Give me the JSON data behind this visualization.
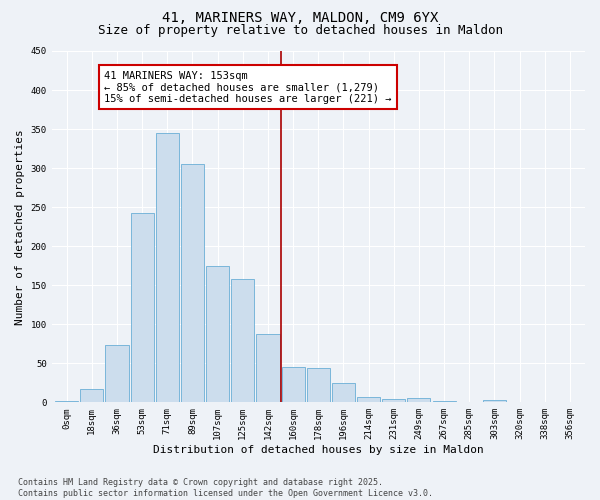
{
  "title": "41, MARINERS WAY, MALDON, CM9 6YX",
  "subtitle": "Size of property relative to detached houses in Maldon",
  "xlabel": "Distribution of detached houses by size in Maldon",
  "ylabel": "Number of detached properties",
  "footnote": "Contains HM Land Registry data © Crown copyright and database right 2025.\nContains public sector information licensed under the Open Government Licence v3.0.",
  "bin_labels": [
    "0sqm",
    "18sqm",
    "36sqm",
    "53sqm",
    "71sqm",
    "89sqm",
    "107sqm",
    "125sqm",
    "142sqm",
    "160sqm",
    "178sqm",
    "196sqm",
    "214sqm",
    "231sqm",
    "249sqm",
    "267sqm",
    "285sqm",
    "303sqm",
    "320sqm",
    "338sqm",
    "356sqm"
  ],
  "bar_values": [
    2,
    17,
    73,
    243,
    345,
    305,
    175,
    158,
    88,
    45,
    44,
    25,
    7,
    4,
    5,
    2,
    0,
    3,
    0,
    0,
    0
  ],
  "bar_color": "#ccdded",
  "bar_edge_color": "#6aaed6",
  "vline_x_index": 9,
  "vline_color": "#aa0000",
  "annotation_text": "41 MARINERS WAY: 153sqm\n← 85% of detached houses are smaller (1,279)\n15% of semi-detached houses are larger (221) →",
  "annotation_box_color": "#cc0000",
  "ylim": [
    0,
    450
  ],
  "yticks": [
    0,
    50,
    100,
    150,
    200,
    250,
    300,
    350,
    400,
    450
  ],
  "background_color": "#eef2f7",
  "grid_color": "#ffffff",
  "title_fontsize": 10,
  "subtitle_fontsize": 9,
  "axis_label_fontsize": 8,
  "tick_fontsize": 6.5,
  "annotation_fontsize": 7.5,
  "footnote_fontsize": 6
}
